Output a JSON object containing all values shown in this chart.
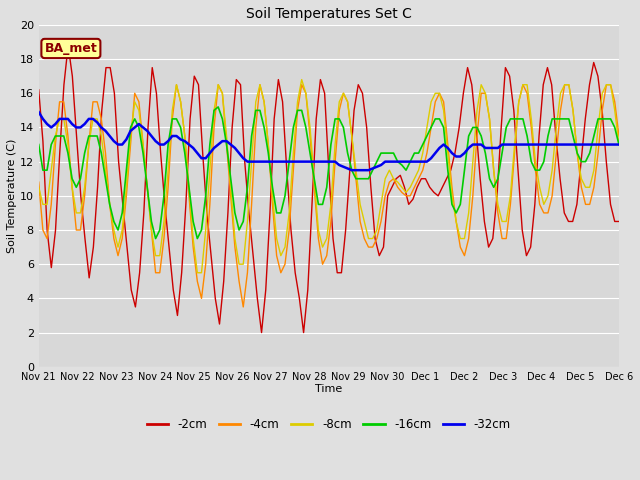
{
  "title": "Soil Temperatures Set C",
  "xlabel": "Time",
  "ylabel": "Soil Temperature (C)",
  "ylim": [
    0,
    20
  ],
  "yticks": [
    0,
    2,
    4,
    6,
    8,
    10,
    12,
    14,
    16,
    18,
    20
  ],
  "fig_width": 6.4,
  "fig_height": 4.8,
  "fig_dpi": 100,
  "background_color": "#e0e0e0",
  "plot_bg_color": "#d8d8d8",
  "annotation_text": "BA_met",
  "annotation_bg": "#ffff99",
  "annotation_border": "#8b0000",
  "series_colors": {
    "-2cm": "#cc0000",
    "-4cm": "#ff8800",
    "-8cm": "#ddcc00",
    "-16cm": "#00cc00",
    "-32cm": "#0000ee"
  },
  "x_labels": [
    "Nov 21",
    "Nov 22",
    "Nov 23",
    "Nov 24",
    "Nov 25",
    "Nov 26",
    "Nov 27",
    "Nov 28",
    "Nov 29",
    "Nov 30",
    "Dec 1",
    "Dec 2",
    "Dec 3",
    "Dec 4",
    "Dec 5",
    "Dec 6"
  ],
  "depth_minus2": [
    16.2,
    13.2,
    8.0,
    5.8,
    8.0,
    12.5,
    16.5,
    18.8,
    17.0,
    13.5,
    10.0,
    7.5,
    5.2,
    7.0,
    10.5,
    15.0,
    17.5,
    17.5,
    16.0,
    12.0,
    9.5,
    7.0,
    4.5,
    3.5,
    5.5,
    9.0,
    14.0,
    17.5,
    16.0,
    12.5,
    9.5,
    7.0,
    4.5,
    3.0,
    5.5,
    9.5,
    14.5,
    17.0,
    16.5,
    12.5,
    9.0,
    6.5,
    4.0,
    2.5,
    5.0,
    9.0,
    14.0,
    16.8,
    16.5,
    12.0,
    9.0,
    6.5,
    4.0,
    2.0,
    4.5,
    9.0,
    14.5,
    16.8,
    15.5,
    11.5,
    8.0,
    5.5,
    4.0,
    2.0,
    4.5,
    9.5,
    14.5,
    16.8,
    16.0,
    11.5,
    7.5,
    5.5,
    5.5,
    8.0,
    11.5,
    15.0,
    16.5,
    16.0,
    14.0,
    10.5,
    7.5,
    6.5,
    7.0,
    10.0,
    10.5,
    11.0,
    11.2,
    10.5,
    9.5,
    9.8,
    10.5,
    11.0,
    11.0,
    10.5,
    10.2,
    10.0,
    10.5,
    11.0,
    11.5,
    12.5,
    14.0,
    16.0,
    17.5,
    16.5,
    14.0,
    11.0,
    8.5,
    7.0,
    7.5,
    10.0,
    14.0,
    17.5,
    17.0,
    15.0,
    11.5,
    8.0,
    6.5,
    7.0,
    9.5,
    13.5,
    16.5,
    17.5,
    16.5,
    13.5,
    11.0,
    9.0,
    8.5,
    8.5,
    9.5,
    12.0,
    14.5,
    16.5,
    17.8,
    17.0,
    15.0,
    12.0,
    9.5,
    8.5,
    8.5
  ],
  "depth_minus4": [
    10.8,
    8.0,
    7.5,
    9.5,
    13.0,
    15.5,
    15.5,
    13.5,
    10.5,
    8.0,
    8.0,
    10.0,
    13.0,
    15.5,
    15.5,
    14.5,
    12.5,
    9.5,
    7.5,
    6.5,
    7.5,
    10.0,
    13.0,
    16.0,
    15.5,
    13.0,
    10.5,
    8.0,
    5.5,
    5.5,
    7.5,
    10.5,
    14.5,
    16.5,
    15.5,
    13.5,
    10.0,
    7.0,
    5.0,
    4.0,
    6.0,
    9.5,
    14.0,
    16.5,
    16.0,
    13.0,
    10.0,
    7.0,
    5.0,
    3.5,
    5.5,
    9.5,
    14.0,
    16.5,
    15.5,
    13.0,
    9.5,
    6.5,
    5.5,
    6.0,
    8.0,
    11.5,
    15.0,
    16.5,
    16.0,
    13.5,
    10.5,
    7.5,
    6.0,
    6.5,
    8.5,
    12.0,
    15.0,
    16.0,
    15.5,
    13.5,
    11.0,
    8.5,
    7.5,
    7.0,
    7.0,
    7.5,
    8.5,
    10.0,
    10.8,
    11.0,
    10.5,
    10.2,
    10.0,
    10.0,
    10.5,
    11.0,
    11.5,
    12.5,
    14.0,
    15.5,
    16.0,
    15.5,
    13.0,
    10.5,
    8.5,
    7.0,
    6.5,
    7.5,
    10.0,
    13.5,
    16.0,
    16.0,
    14.5,
    11.5,
    9.0,
    7.5,
    7.5,
    9.5,
    12.5,
    15.5,
    16.5,
    16.0,
    14.0,
    11.5,
    9.5,
    9.0,
    9.0,
    10.0,
    12.5,
    15.0,
    16.5,
    16.5,
    15.0,
    12.5,
    10.5,
    9.5,
    9.5,
    10.5,
    12.5,
    15.0,
    16.5,
    16.5,
    15.5,
    13.5
  ],
  "depth_minus8": [
    10.5,
    9.5,
    9.5,
    11.5,
    13.5,
    14.5,
    14.5,
    13.0,
    10.5,
    9.0,
    9.0,
    10.5,
    13.0,
    14.5,
    14.5,
    13.5,
    11.5,
    9.5,
    8.0,
    7.0,
    8.0,
    10.5,
    13.5,
    15.5,
    15.0,
    13.0,
    10.5,
    8.0,
    6.5,
    6.5,
    8.5,
    11.5,
    15.0,
    16.5,
    15.5,
    13.5,
    10.5,
    7.5,
    5.5,
    5.5,
    8.0,
    11.5,
    15.0,
    16.5,
    16.0,
    13.5,
    10.5,
    7.5,
    6.0,
    6.0,
    8.5,
    12.0,
    15.5,
    16.5,
    15.5,
    13.0,
    10.0,
    7.5,
    6.5,
    7.0,
    9.0,
    12.5,
    15.5,
    16.8,
    16.0,
    14.0,
    11.0,
    8.0,
    7.0,
    7.5,
    9.5,
    13.0,
    15.5,
    16.0,
    15.5,
    13.5,
    11.5,
    9.5,
    8.5,
    7.5,
    7.5,
    8.0,
    9.5,
    11.0,
    11.5,
    11.0,
    10.8,
    10.5,
    10.2,
    10.5,
    11.0,
    11.5,
    12.5,
    14.0,
    15.5,
    16.0,
    16.0,
    15.0,
    12.5,
    10.0,
    8.5,
    7.5,
    7.5,
    9.0,
    12.0,
    15.0,
    16.5,
    16.0,
    14.5,
    11.5,
    9.5,
    8.5,
    8.5,
    10.0,
    13.0,
    15.5,
    16.5,
    16.5,
    14.5,
    12.0,
    10.5,
    9.5,
    10.0,
    11.5,
    14.0,
    16.0,
    16.5,
    16.5,
    15.0,
    12.5,
    11.0,
    10.5,
    10.5,
    11.5,
    14.0,
    16.0,
    16.5,
    16.5,
    15.0,
    13.0
  ],
  "depth_minus16": [
    13.0,
    11.5,
    11.5,
    13.0,
    13.5,
    13.5,
    13.5,
    12.5,
    11.0,
    10.5,
    11.0,
    12.5,
    13.5,
    13.5,
    13.5,
    12.5,
    11.0,
    9.5,
    8.5,
    8.0,
    9.0,
    11.5,
    14.0,
    14.5,
    14.0,
    12.5,
    10.5,
    8.5,
    7.5,
    8.0,
    10.0,
    13.0,
    14.5,
    14.5,
    14.0,
    12.5,
    10.5,
    8.5,
    7.5,
    8.0,
    10.0,
    13.0,
    15.0,
    15.2,
    14.5,
    13.0,
    11.0,
    9.0,
    8.0,
    8.5,
    10.5,
    13.5,
    15.0,
    15.0,
    14.0,
    12.5,
    10.5,
    9.0,
    9.0,
    10.0,
    12.0,
    14.0,
    15.0,
    15.0,
    14.0,
    12.5,
    11.0,
    9.5,
    9.5,
    10.5,
    13.0,
    14.5,
    14.5,
    14.0,
    12.5,
    11.5,
    11.0,
    11.0,
    11.0,
    11.0,
    11.5,
    12.0,
    12.5,
    12.5,
    12.5,
    12.5,
    12.0,
    11.8,
    11.5,
    12.0,
    12.5,
    12.5,
    13.0,
    13.5,
    14.0,
    14.5,
    14.5,
    14.0,
    11.5,
    9.5,
    9.0,
    9.5,
    11.5,
    13.5,
    14.0,
    14.0,
    13.5,
    12.5,
    11.0,
    10.5,
    11.0,
    12.5,
    14.0,
    14.5,
    14.5,
    14.5,
    14.5,
    13.5,
    12.0,
    11.5,
    11.5,
    12.0,
    13.5,
    14.5,
    14.5,
    14.5,
    14.5,
    14.5,
    13.5,
    12.5,
    12.0,
    12.0,
    12.5,
    13.5,
    14.5,
    14.5,
    14.5,
    14.5,
    14.0,
    13.0
  ],
  "depth_minus32": [
    14.9,
    14.5,
    14.2,
    14.0,
    14.2,
    14.5,
    14.5,
    14.5,
    14.2,
    14.0,
    14.0,
    14.2,
    14.5,
    14.5,
    14.3,
    14.0,
    13.8,
    13.5,
    13.2,
    13.0,
    13.0,
    13.3,
    13.8,
    14.0,
    14.2,
    14.0,
    13.8,
    13.5,
    13.2,
    13.0,
    13.0,
    13.2,
    13.5,
    13.5,
    13.3,
    13.2,
    13.0,
    12.8,
    12.5,
    12.2,
    12.2,
    12.5,
    12.8,
    13.0,
    13.2,
    13.2,
    13.0,
    12.8,
    12.5,
    12.2,
    12.0,
    12.0,
    12.0,
    12.0,
    12.0,
    12.0,
    12.0,
    12.0,
    12.0,
    12.0,
    12.0,
    12.0,
    12.0,
    12.0,
    12.0,
    12.0,
    12.0,
    12.0,
    12.0,
    12.0,
    12.0,
    12.0,
    11.8,
    11.7,
    11.6,
    11.5,
    11.5,
    11.5,
    11.5,
    11.5,
    11.6,
    11.7,
    11.8,
    12.0,
    12.0,
    12.0,
    12.0,
    12.0,
    12.0,
    12.0,
    12.0,
    12.0,
    12.0,
    12.0,
    12.2,
    12.5,
    12.8,
    13.0,
    12.8,
    12.5,
    12.3,
    12.3,
    12.5,
    12.8,
    13.0,
    13.0,
    13.0,
    12.8,
    12.8,
    12.8,
    12.8,
    13.0,
    13.0,
    13.0,
    13.0,
    13.0,
    13.0,
    13.0,
    13.0,
    13.0,
    13.0,
    13.0,
    13.0,
    13.0,
    13.0,
    13.0,
    13.0,
    13.0,
    13.0,
    13.0,
    13.0,
    13.0,
    13.0,
    13.0,
    13.0,
    13.0,
    13.0,
    13.0,
    13.0,
    13.0
  ]
}
